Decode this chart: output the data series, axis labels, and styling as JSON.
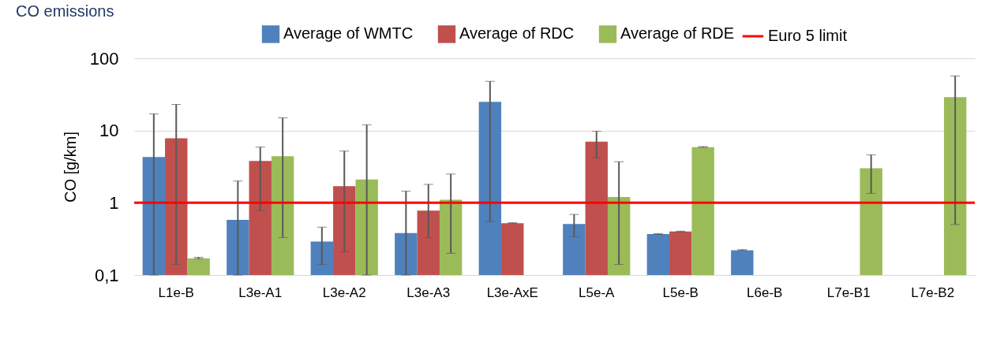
{
  "chart_data": {
    "type": "bar",
    "title": "CO emissions",
    "ylabel": "CO [g/km]",
    "categories": [
      "L1e-B",
      "L3e-A1",
      "L3e-A2",
      "L3e-A3",
      "L3e-AxE",
      "L5e-A",
      "L5e-B",
      "L6e-B",
      "L7e-B1",
      "L7e-B2"
    ],
    "series": [
      {
        "name": "Average of WMTC",
        "color": "#4f81bd",
        "values": [
          4.3,
          0.58,
          0.29,
          0.38,
          25,
          0.51,
          0.37,
          0.22,
          null,
          null
        ],
        "errors": [
          [
            0.1,
            17
          ],
          [
            0.1,
            2
          ],
          [
            0.14,
            0.46
          ],
          [
            0.1,
            1.45
          ],
          [
            0.55,
            48
          ],
          [
            0.34,
            0.69
          ],
          [
            0.365,
            0.375
          ],
          [
            0.218,
            0.225
          ],
          null,
          null
        ]
      },
      {
        "name": "Average of RDC",
        "color": "#c0504d",
        "values": [
          7.8,
          3.8,
          1.7,
          0.78,
          0.52,
          7,
          0.4,
          null,
          null,
          null
        ],
        "errors": [
          [
            0.14,
            23
          ],
          [
            0.78,
            5.9
          ],
          [
            0.21,
            5.2
          ],
          [
            0.33,
            1.8
          ],
          [
            0.515,
            0.53
          ],
          [
            4.2,
            9.8
          ],
          [
            0.395,
            0.405
          ],
          null,
          null,
          null
        ]
      },
      {
        "name": "Average of RDE",
        "color": "#9bbb59",
        "values": [
          0.17,
          4.4,
          2.1,
          1.1,
          null,
          1.2,
          5.9,
          null,
          3,
          29
        ],
        "errors": [
          [
            0.168,
            0.176
          ],
          [
            0.33,
            15
          ],
          [
            0.1,
            12
          ],
          [
            0.2,
            2.5
          ],
          null,
          [
            0.14,
            3.7
          ],
          [
            5.85,
            6
          ],
          null,
          [
            1.35,
            4.6
          ],
          [
            0.5,
            57
          ]
        ]
      }
    ],
    "ref_lines": [
      {
        "axis": "y",
        "value": 1,
        "label": "Euro 5 limit",
        "color": "#ff0000"
      }
    ],
    "log": true,
    "ylim": [
      0.1,
      100
    ],
    "yticks": [
      {
        "value": 0.1,
        "label": "0,1"
      },
      1,
      10,
      100
    ],
    "grid": "y",
    "legend": "top"
  }
}
